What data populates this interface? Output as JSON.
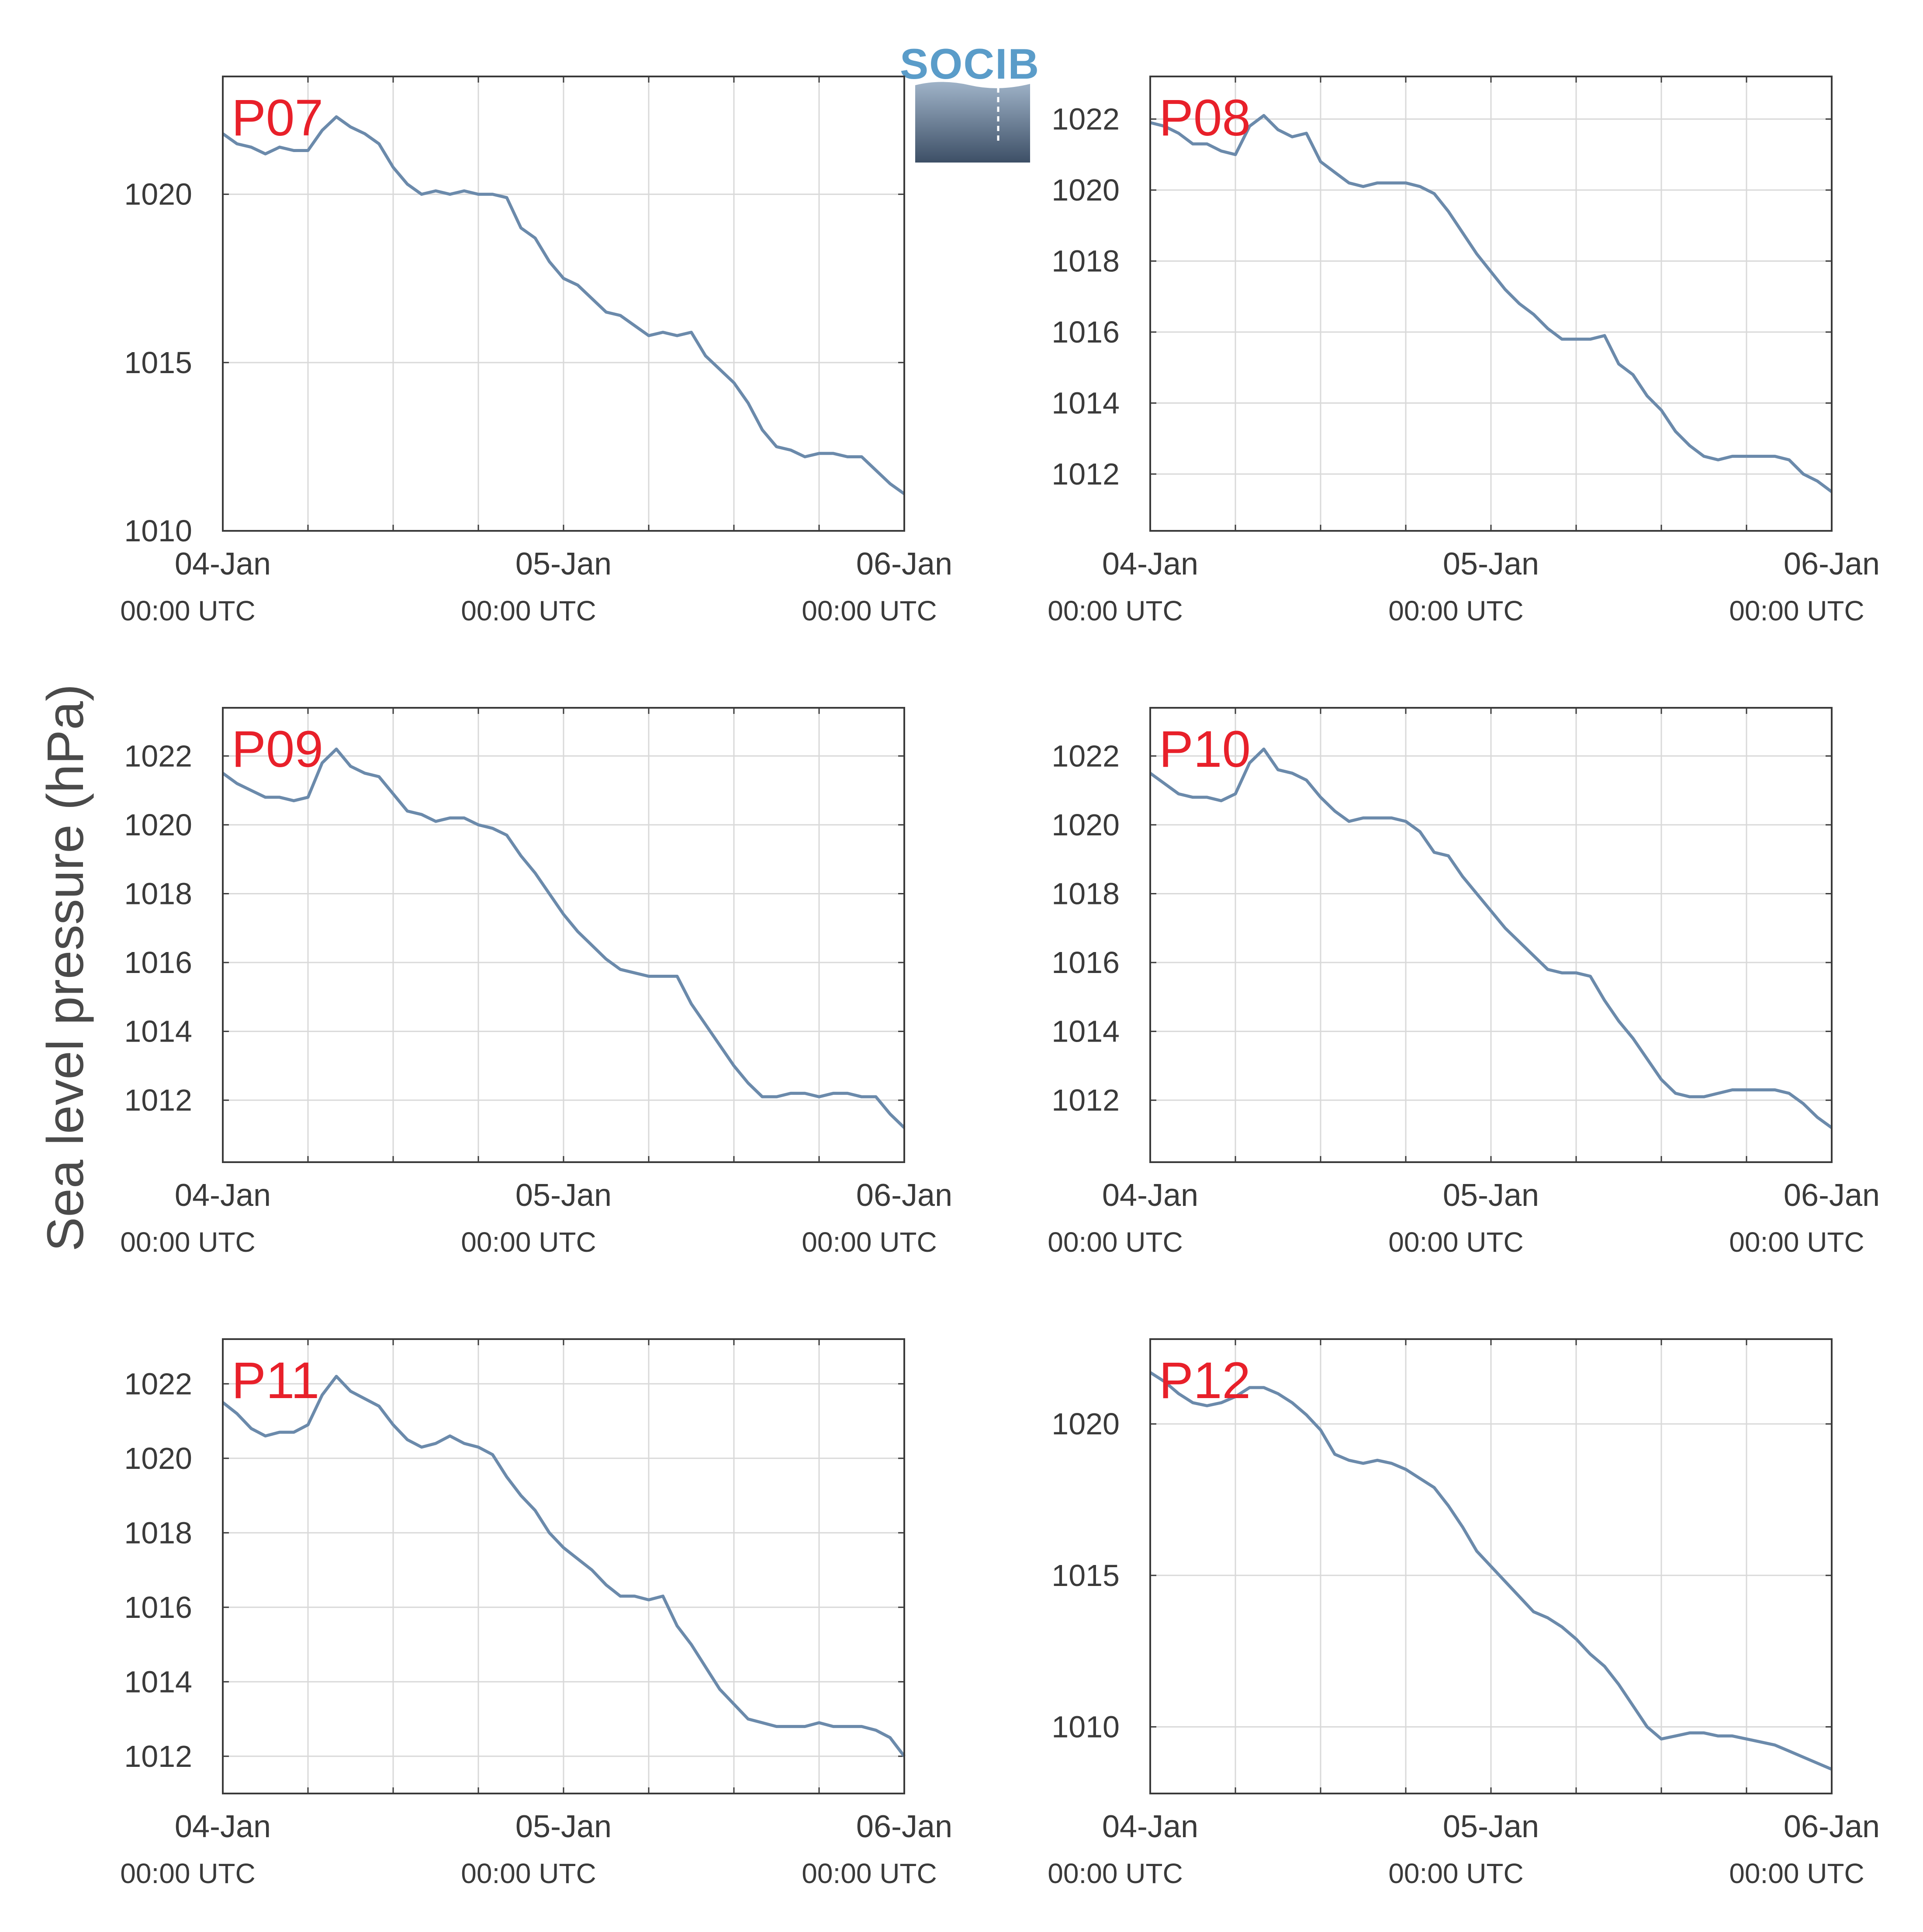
{
  "figure": {
    "ylabel": "Sea level pressure (hPa)",
    "logo_text": "SOCIB",
    "line_color": "#6b8aab",
    "label_color": "#e8202a",
    "grid_color": "#d9d9d9"
  },
  "chart_data": [
    {
      "type": "line",
      "title": "P07",
      "xlim": [
        0,
        48
      ],
      "ylim": [
        1010,
        1023.5
      ],
      "xticks": [
        {
          "x": 0,
          "date": "04-Jan",
          "time": "00:00 UTC"
        },
        {
          "x": 24,
          "date": "05-Jan",
          "time": "00:00 UTC"
        },
        {
          "x": 48,
          "date": "06-Jan",
          "time": "00:00 UTC"
        }
      ],
      "yticks": [
        1010,
        1015,
        1020
      ],
      "series": [
        {
          "x": [
            0,
            1,
            2,
            3,
            4,
            5,
            6,
            7,
            8,
            9,
            10,
            11,
            12,
            13,
            14,
            15,
            16,
            17,
            18,
            19,
            20,
            21,
            22,
            23,
            24,
            25,
            26,
            27,
            28,
            29,
            30,
            31,
            32,
            33,
            34,
            35,
            36,
            37,
            38,
            39,
            40,
            41,
            42,
            43,
            44,
            45,
            46,
            47,
            48
          ],
          "y": [
            1021.8,
            1021.5,
            1021.4,
            1021.2,
            1021.4,
            1021.3,
            1021.3,
            1021.9,
            1022.3,
            1022.0,
            1021.8,
            1021.5,
            1020.8,
            1020.3,
            1020.0,
            1020.1,
            1020.0,
            1020.1,
            1020.0,
            1020.0,
            1019.9,
            1019.0,
            1018.7,
            1018.0,
            1017.5,
            1017.3,
            1016.9,
            1016.5,
            1016.4,
            1016.1,
            1015.8,
            1015.9,
            1015.8,
            1015.9,
            1015.2,
            1014.8,
            1014.4,
            1013.8,
            1013.0,
            1012.5,
            1012.4,
            1012.2,
            1012.3,
            1012.3,
            1012.2,
            1012.2,
            1011.8,
            1011.4,
            1011.1
          ]
        }
      ]
    },
    {
      "type": "line",
      "title": "P08",
      "xlim": [
        0,
        48
      ],
      "ylim": [
        1010.4,
        1023.2
      ],
      "xticks": [
        {
          "x": 0,
          "date": "04-Jan",
          "time": "00:00 UTC"
        },
        {
          "x": 24,
          "date": "05-Jan",
          "time": "00:00 UTC"
        },
        {
          "x": 48,
          "date": "06-Jan",
          "time": "00:00 UTC"
        }
      ],
      "yticks": [
        1012,
        1014,
        1016,
        1018,
        1020,
        1022
      ],
      "series": [
        {
          "x": [
            0,
            1,
            2,
            3,
            4,
            5,
            6,
            7,
            8,
            9,
            10,
            11,
            12,
            13,
            14,
            15,
            16,
            17,
            18,
            19,
            20,
            21,
            22,
            23,
            24,
            25,
            26,
            27,
            28,
            29,
            30,
            31,
            32,
            33,
            34,
            35,
            36,
            37,
            38,
            39,
            40,
            41,
            42,
            43,
            44,
            45,
            46,
            47,
            48
          ],
          "y": [
            1021.9,
            1021.8,
            1021.6,
            1021.3,
            1021.3,
            1021.1,
            1021.0,
            1021.8,
            1022.1,
            1021.7,
            1021.5,
            1021.6,
            1020.8,
            1020.5,
            1020.2,
            1020.1,
            1020.2,
            1020.2,
            1020.2,
            1020.1,
            1019.9,
            1019.4,
            1018.8,
            1018.2,
            1017.7,
            1017.2,
            1016.8,
            1016.5,
            1016.1,
            1015.8,
            1015.8,
            1015.8,
            1015.9,
            1015.1,
            1014.8,
            1014.2,
            1013.8,
            1013.2,
            1012.8,
            1012.5,
            1012.4,
            1012.5,
            1012.5,
            1012.5,
            1012.5,
            1012.4,
            1012.0,
            1011.8,
            1011.5
          ]
        }
      ]
    },
    {
      "type": "line",
      "title": "P09",
      "xlim": [
        0,
        48
      ],
      "ylim": [
        1010.2,
        1023.4
      ],
      "xticks": [
        {
          "x": 0,
          "date": "04-Jan",
          "time": "00:00 UTC"
        },
        {
          "x": 24,
          "date": "05-Jan",
          "time": "00:00 UTC"
        },
        {
          "x": 48,
          "date": "06-Jan",
          "time": "00:00 UTC"
        }
      ],
      "yticks": [
        1012,
        1014,
        1016,
        1018,
        1020,
        1022
      ],
      "series": [
        {
          "x": [
            0,
            1,
            2,
            3,
            4,
            5,
            6,
            7,
            8,
            9,
            10,
            11,
            12,
            13,
            14,
            15,
            16,
            17,
            18,
            19,
            20,
            21,
            22,
            23,
            24,
            25,
            26,
            27,
            28,
            29,
            30,
            31,
            32,
            33,
            34,
            35,
            36,
            37,
            38,
            39,
            40,
            41,
            42,
            43,
            44,
            45,
            46,
            47,
            48
          ],
          "y": [
            1021.5,
            1021.2,
            1021.0,
            1020.8,
            1020.8,
            1020.7,
            1020.8,
            1021.8,
            1022.2,
            1021.7,
            1021.5,
            1021.4,
            1020.9,
            1020.4,
            1020.3,
            1020.1,
            1020.2,
            1020.2,
            1020.0,
            1019.9,
            1019.7,
            1019.1,
            1018.6,
            1018.0,
            1017.4,
            1016.9,
            1016.5,
            1016.1,
            1015.8,
            1015.7,
            1015.6,
            1015.6,
            1015.6,
            1014.8,
            1014.2,
            1013.6,
            1013.0,
            1012.5,
            1012.1,
            1012.1,
            1012.2,
            1012.2,
            1012.1,
            1012.2,
            1012.2,
            1012.1,
            1012.1,
            1011.6,
            1011.2
          ]
        }
      ]
    },
    {
      "type": "line",
      "title": "P10",
      "xlim": [
        0,
        48
      ],
      "ylim": [
        1010.2,
        1023.4
      ],
      "xticks": [
        {
          "x": 0,
          "date": "04-Jan",
          "time": "00:00 UTC"
        },
        {
          "x": 24,
          "date": "05-Jan",
          "time": "00:00 UTC"
        },
        {
          "x": 48,
          "date": "06-Jan",
          "time": "00:00 UTC"
        }
      ],
      "yticks": [
        1012,
        1014,
        1016,
        1018,
        1020,
        1022
      ],
      "series": [
        {
          "x": [
            0,
            1,
            2,
            3,
            4,
            5,
            6,
            7,
            8,
            9,
            10,
            11,
            12,
            13,
            14,
            15,
            16,
            17,
            18,
            19,
            20,
            21,
            22,
            23,
            24,
            25,
            26,
            27,
            28,
            29,
            30,
            31,
            32,
            33,
            34,
            35,
            36,
            37,
            38,
            39,
            40,
            41,
            42,
            43,
            44,
            45,
            46,
            47,
            48
          ],
          "y": [
            1021.5,
            1021.2,
            1020.9,
            1020.8,
            1020.8,
            1020.7,
            1020.9,
            1021.8,
            1022.2,
            1021.6,
            1021.5,
            1021.3,
            1020.8,
            1020.4,
            1020.1,
            1020.2,
            1020.2,
            1020.2,
            1020.1,
            1019.8,
            1019.2,
            1019.1,
            1018.5,
            1018.0,
            1017.5,
            1017.0,
            1016.6,
            1016.2,
            1015.8,
            1015.7,
            1015.7,
            1015.6,
            1014.9,
            1014.3,
            1013.8,
            1013.2,
            1012.6,
            1012.2,
            1012.1,
            1012.1,
            1012.2,
            1012.3,
            1012.3,
            1012.3,
            1012.3,
            1012.2,
            1011.9,
            1011.5,
            1011.2
          ]
        }
      ]
    },
    {
      "type": "line",
      "title": "P11",
      "xlim": [
        0,
        48
      ],
      "ylim": [
        1011.0,
        1023.2
      ],
      "xticks": [
        {
          "x": 0,
          "date": "04-Jan",
          "time": "00:00 UTC"
        },
        {
          "x": 24,
          "date": "05-Jan",
          "time": "00:00 UTC"
        },
        {
          "x": 48,
          "date": "06-Jan",
          "time": "00:00 UTC"
        }
      ],
      "yticks": [
        1012,
        1014,
        1016,
        1018,
        1020,
        1022
      ],
      "series": [
        {
          "x": [
            0,
            1,
            2,
            3,
            4,
            5,
            6,
            7,
            8,
            9,
            10,
            11,
            12,
            13,
            14,
            15,
            16,
            17,
            18,
            19,
            20,
            21,
            22,
            23,
            24,
            25,
            26,
            27,
            28,
            29,
            30,
            31,
            32,
            33,
            34,
            35,
            36,
            37,
            38,
            39,
            40,
            41,
            42,
            43,
            44,
            45,
            46,
            47,
            48
          ],
          "y": [
            1021.5,
            1021.2,
            1020.8,
            1020.6,
            1020.7,
            1020.7,
            1020.9,
            1021.7,
            1022.2,
            1021.8,
            1021.6,
            1021.4,
            1020.9,
            1020.5,
            1020.3,
            1020.4,
            1020.6,
            1020.4,
            1020.3,
            1020.1,
            1019.5,
            1019.0,
            1018.6,
            1018.0,
            1017.6,
            1017.3,
            1017.0,
            1016.6,
            1016.3,
            1016.3,
            1016.2,
            1016.3,
            1015.5,
            1015.0,
            1014.4,
            1013.8,
            1013.4,
            1013.0,
            1012.9,
            1012.8,
            1012.8,
            1012.8,
            1012.9,
            1012.8,
            1012.8,
            1012.8,
            1012.7,
            1012.5,
            1012.0
          ]
        }
      ]
    },
    {
      "type": "line",
      "title": "P12",
      "xlim": [
        0,
        48
      ],
      "ylim": [
        1007.8,
        1022.8
      ],
      "xticks": [
        {
          "x": 0,
          "date": "04-Jan",
          "time": "00:00 UTC"
        },
        {
          "x": 24,
          "date": "05-Jan",
          "time": "00:00 UTC"
        },
        {
          "x": 48,
          "date": "06-Jan",
          "time": "00:00 UTC"
        }
      ],
      "yticks": [
        1010,
        1015,
        1020
      ],
      "series": [
        {
          "x": [
            0,
            1,
            2,
            3,
            4,
            5,
            6,
            7,
            8,
            9,
            10,
            11,
            12,
            13,
            14,
            15,
            16,
            17,
            18,
            19,
            20,
            21,
            22,
            23,
            24,
            25,
            26,
            27,
            28,
            29,
            30,
            31,
            32,
            33,
            34,
            35,
            36,
            37,
            38,
            39,
            40,
            41,
            42,
            43,
            44,
            45,
            46,
            47,
            48
          ],
          "y": [
            1021.7,
            1021.4,
            1021.0,
            1020.7,
            1020.6,
            1020.7,
            1020.9,
            1021.2,
            1021.2,
            1021.0,
            1020.7,
            1020.3,
            1019.8,
            1019.0,
            1018.8,
            1018.7,
            1018.8,
            1018.7,
            1018.5,
            1018.2,
            1017.9,
            1017.3,
            1016.6,
            1015.8,
            1015.3,
            1014.8,
            1014.3,
            1013.8,
            1013.6,
            1013.3,
            1012.9,
            1012.4,
            1012.0,
            1011.4,
            1010.7,
            1010.0,
            1009.6,
            1009.7,
            1009.8,
            1009.8,
            1009.7,
            1009.7,
            1009.6,
            1009.5,
            1009.4,
            1009.2,
            1009.0,
            1008.8,
            1008.6
          ]
        }
      ]
    }
  ]
}
